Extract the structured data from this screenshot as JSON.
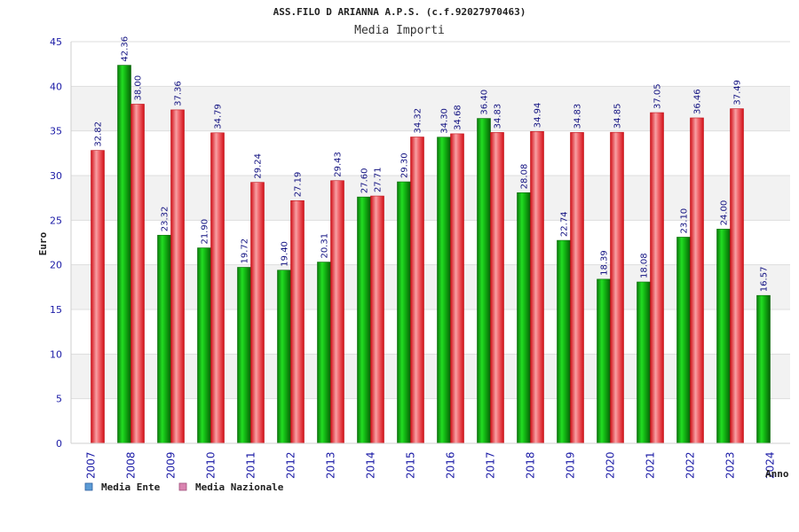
{
  "chart_data": {
    "type": "bar",
    "title": "ASS.FILO D ARIANNA A.P.S. (c.f.92027970463)",
    "subtitle": "Media Importi",
    "xlabel": "Anno",
    "ylabel": "Euro",
    "ylim": [
      0,
      45
    ],
    "yticks": [
      0,
      5,
      10,
      15,
      20,
      25,
      30,
      35,
      40,
      45
    ],
    "grid": true,
    "legend_position": "bottom-left",
    "categories": [
      "2007",
      "2008",
      "2009",
      "2010",
      "2011",
      "2012",
      "2013",
      "2014",
      "2015",
      "2016",
      "2017",
      "2018",
      "2019",
      "2020",
      "2021",
      "2022",
      "2023",
      "2024"
    ],
    "series": [
      {
        "name": "Media Ente",
        "color": "#10b010",
        "legend_color": "#5b9bd5",
        "values": [
          null,
          42.36,
          23.32,
          21.9,
          19.72,
          19.4,
          20.31,
          27.6,
          29.3,
          34.3,
          36.4,
          28.08,
          22.74,
          18.39,
          18.08,
          23.1,
          24.0,
          16.57
        ],
        "labels": [
          "",
          "42.36",
          "23.32",
          "21.90",
          "19.72",
          "19.40",
          "20.31",
          "27.60",
          "29.30",
          "34.30",
          "36.40",
          "28.08",
          "22.74",
          "18.39",
          "18.08",
          "23.10",
          "24.00",
          "16.57"
        ]
      },
      {
        "name": "Media Nazionale",
        "color": "#e41e26",
        "legend_color": "#d983b0",
        "values": [
          32.82,
          38.0,
          37.36,
          34.79,
          29.24,
          27.19,
          29.43,
          27.71,
          34.32,
          34.68,
          34.83,
          34.94,
          34.83,
          34.85,
          37.05,
          36.46,
          37.49,
          null
        ],
        "labels": [
          "32.82",
          "38.00",
          "37.36",
          "34.79",
          "29.24",
          "27.19",
          "29.43",
          "27.71",
          "34.32",
          "34.68",
          "34.83",
          "34.94",
          "34.83",
          "34.85",
          "37.05",
          "36.46",
          "37.49",
          ""
        ]
      }
    ]
  }
}
